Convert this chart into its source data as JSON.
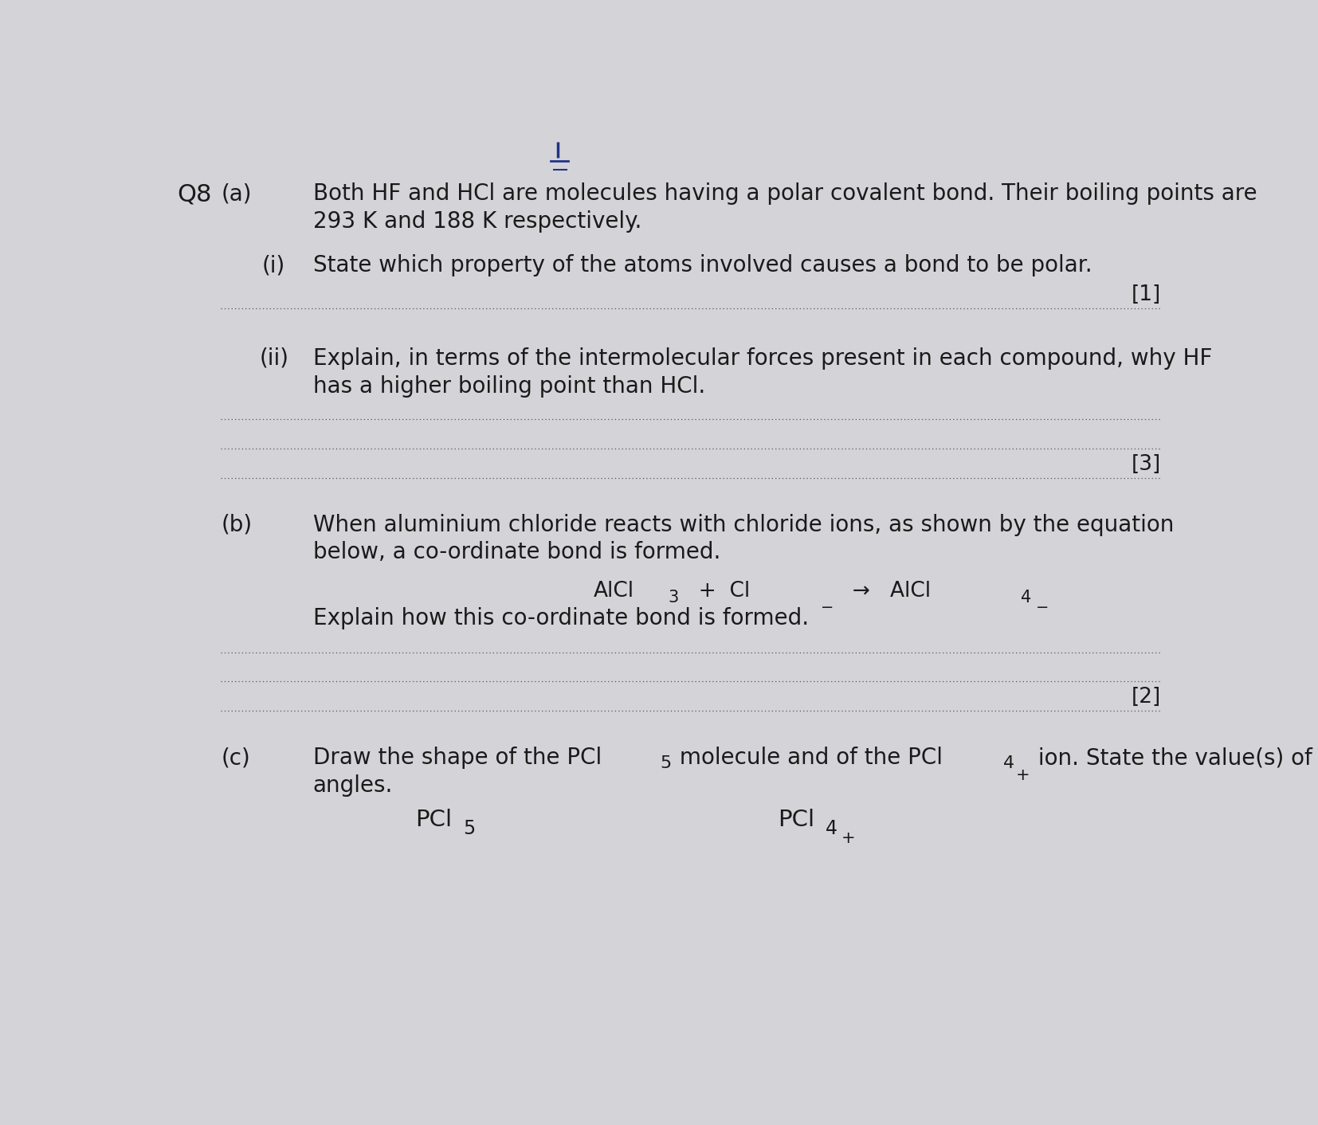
{
  "bg_color": "#d4d4d8",
  "text_color": "#1a1a1a",
  "page_width": 16.54,
  "page_height": 14.12,
  "question_number": "Q8",
  "part_a_label": "(a)",
  "part_a_text_line1": "Both HF and HCl are molecules having a polar covalent bond. Their boiling points are",
  "part_a_text_line2": "293 K and 188 K respectively.",
  "part_i_label": "(i)",
  "part_i_text": "State which property of the atoms involved causes a bond to be polar.",
  "part_i_mark": "[1]",
  "part_ii_label": "(ii)",
  "part_ii_text_line1": "Explain, in terms of the intermolecular forces present in each compound, why HF",
  "part_ii_text_line2": "has a higher boiling point than HCl.",
  "part_ii_mark": "[3]",
  "part_b_label": "(b)",
  "part_b_text_line1": "When aluminium chloride reacts with chloride ions, as shown by the equation",
  "part_b_text_line2": "below, a co-ordinate bond is formed.",
  "equation_line1": "AlCl",
  "equation_sub3": "3",
  "equation_mid": "  +  Cl",
  "equation_sup_minus": "⁻",
  "equation_arrow": "  →   AlCl",
  "equation_sub4": "4",
  "equation_sup_minus2": "⁻",
  "part_b_explain": "Explain how this co-ordinate bond is formed.",
  "part_b_mark": "[2]",
  "part_c_label": "(c)",
  "part_c_text_line1": "Draw the shape of the PCl",
  "part_c_sub5": "5",
  "part_c_text_mid": " molecule and of the PCl",
  "part_c_sub4": "4",
  "part_c_sup_plus": "⁺",
  "part_c_text_end": " ion. State the value(s) of the bond",
  "part_c_text_line2": "angles.",
  "pcl5_main": "PCl",
  "pcl5_sub": "5",
  "pcl4_main": "PCl",
  "pcl4_sub": "4",
  "pcl4_sup": "+",
  "font_size_main": 20,
  "font_size_eq": 19,
  "dot_color": "#555555",
  "mark_color": "#111111"
}
